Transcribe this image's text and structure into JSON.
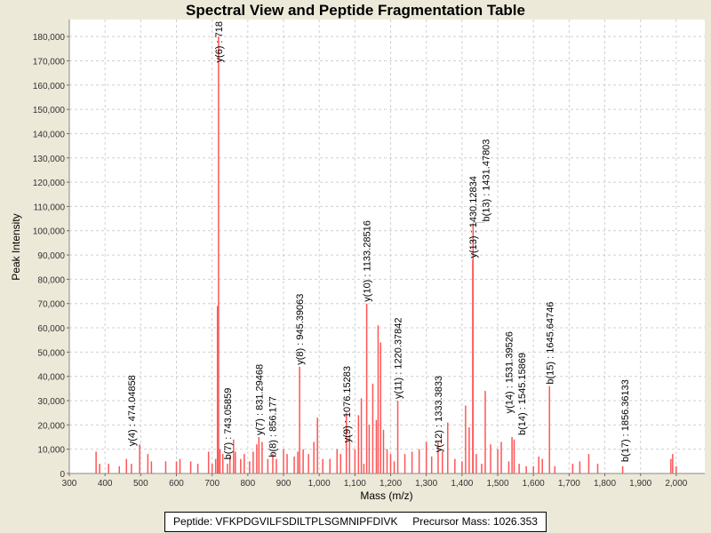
{
  "chart_data": {
    "type": "bar",
    "title": "Spectral View and Peptide Fragmentation Table",
    "xlabel": "Mass (m/z)",
    "ylabel": "Peak Intensity",
    "xlim": [
      300,
      2080
    ],
    "ylim": [
      0,
      187000
    ],
    "x_ticks": [
      300,
      400,
      500,
      600,
      700,
      800,
      900,
      1000,
      1100,
      1200,
      1300,
      1400,
      1500,
      1600,
      1700,
      1800,
      1900,
      2000
    ],
    "x_tick_labels": [
      "300",
      "400",
      "500",
      "600",
      "700",
      "800",
      "900",
      "1,000",
      "1,100",
      "1,200",
      "1,300",
      "1,400",
      "1,500",
      "1,600",
      "1,700",
      "1,800",
      "1,900",
      "2,000"
    ],
    "y_ticks": [
      0,
      10000,
      20000,
      30000,
      40000,
      50000,
      60000,
      70000,
      80000,
      90000,
      100000,
      110000,
      120000,
      130000,
      140000,
      150000,
      160000,
      170000,
      180000
    ],
    "y_tick_labels": [
      "0",
      "10,000",
      "20,000",
      "30,000",
      "40,000",
      "50,000",
      "60,000",
      "70,000",
      "80,000",
      "90,000",
      "100,000",
      "110,000",
      "120,000",
      "130,000",
      "140,000",
      "150,000",
      "160,000",
      "170,000",
      "180,000"
    ],
    "grid": true,
    "peak_color": "#ff5555",
    "peaks": [
      [
        375,
        9000
      ],
      [
        385,
        4000
      ],
      [
        410,
        4000
      ],
      [
        440,
        3000
      ],
      [
        460,
        6000
      ],
      [
        474,
        4000
      ],
      [
        497,
        12000
      ],
      [
        520,
        8000
      ],
      [
        530,
        5000
      ],
      [
        570,
        5000
      ],
      [
        600,
        5000
      ],
      [
        610,
        6000
      ],
      [
        640,
        5000
      ],
      [
        660,
        4000
      ],
      [
        690,
        9000
      ],
      [
        700,
        4000
      ],
      [
        710,
        6000
      ],
      [
        715,
        69000
      ],
      [
        718,
        180000
      ],
      [
        722,
        10000
      ],
      [
        730,
        8000
      ],
      [
        743,
        4000
      ],
      [
        750,
        7000
      ],
      [
        760,
        14000
      ],
      [
        765,
        9000
      ],
      [
        780,
        6000
      ],
      [
        790,
        8000
      ],
      [
        805,
        5000
      ],
      [
        815,
        9000
      ],
      [
        825,
        12000
      ],
      [
        831,
        15000
      ],
      [
        840,
        13000
      ],
      [
        856,
        6000
      ],
      [
        870,
        8000
      ],
      [
        880,
        6000
      ],
      [
        900,
        10000
      ],
      [
        910,
        8000
      ],
      [
        930,
        7000
      ],
      [
        940,
        9000
      ],
      [
        945,
        44000
      ],
      [
        955,
        10000
      ],
      [
        970,
        8000
      ],
      [
        985,
        13000
      ],
      [
        995,
        23000
      ],
      [
        1010,
        6000
      ],
      [
        1030,
        6000
      ],
      [
        1050,
        10000
      ],
      [
        1060,
        8000
      ],
      [
        1076,
        25000
      ],
      [
        1085,
        16000
      ],
      [
        1100,
        10000
      ],
      [
        1110,
        24000
      ],
      [
        1118,
        31000
      ],
      [
        1125,
        4000
      ],
      [
        1133,
        70000
      ],
      [
        1140,
        20000
      ],
      [
        1150,
        37000
      ],
      [
        1160,
        22000
      ],
      [
        1165,
        61000
      ],
      [
        1172,
        54000
      ],
      [
        1180,
        18000
      ],
      [
        1190,
        10000
      ],
      [
        1200,
        8000
      ],
      [
        1210,
        5000
      ],
      [
        1220,
        30000
      ],
      [
        1240,
        8000
      ],
      [
        1260,
        9000
      ],
      [
        1280,
        10000
      ],
      [
        1300,
        13000
      ],
      [
        1315,
        7000
      ],
      [
        1333,
        13000
      ],
      [
        1345,
        9000
      ],
      [
        1360,
        21000
      ],
      [
        1380,
        6000
      ],
      [
        1400,
        5000
      ],
      [
        1410,
        28000
      ],
      [
        1420,
        19000
      ],
      [
        1430,
        88000
      ],
      [
        1431,
        103000
      ],
      [
        1440,
        8000
      ],
      [
        1455,
        4000
      ],
      [
        1465,
        34000
      ],
      [
        1480,
        12000
      ],
      [
        1500,
        10000
      ],
      [
        1510,
        13000
      ],
      [
        1531,
        5000
      ],
      [
        1540,
        15000
      ],
      [
        1546,
        14000
      ],
      [
        1560,
        4000
      ],
      [
        1580,
        3000
      ],
      [
        1600,
        3000
      ],
      [
        1615,
        7000
      ],
      [
        1625,
        6000
      ],
      [
        1645,
        36000
      ],
      [
        1660,
        3000
      ],
      [
        1710,
        4000
      ],
      [
        1730,
        5000
      ],
      [
        1755,
        8000
      ],
      [
        1780,
        4000
      ],
      [
        1850,
        3000
      ],
      [
        1985,
        6000
      ],
      [
        1990,
        8000
      ],
      [
        2000,
        3000
      ]
    ],
    "annotations": [
      {
        "label": "y(4) : 474.04858",
        "mz": 474.04858,
        "intensity": 10500
      },
      {
        "label": "y(6) : 718",
        "mz": 718,
        "intensity": 181000
      },
      {
        "label": "b(7) : 743.05859",
        "mz": 743.05859,
        "intensity": 5000
      },
      {
        "label": "y(7) : 831.29468",
        "mz": 831.29468,
        "intensity": 15000
      },
      {
        "label": "b(8) : 856.177",
        "mz": 856.177,
        "intensity": 6000
      },
      {
        "label": "y(8) : 945.39063",
        "mz": 945.39063,
        "intensity": 44000
      },
      {
        "label": "y(9) : 1076.15283",
        "mz": 1076.15283,
        "intensity": 12000
      },
      {
        "label": "y(10) : 1133.28516",
        "mz": 1133.28516,
        "intensity": 70000
      },
      {
        "label": "y(11) : 1220.37842",
        "mz": 1220.37842,
        "intensity": 30000
      },
      {
        "label": "y(12) : 1333.3833",
        "mz": 1333.3833,
        "intensity": 8000
      },
      {
        "label": "y(13) : 1430.12834",
        "mz": 1430.12834,
        "intensity": 88000
      },
      {
        "label": "b(13) : 1431.47803",
        "mz": 1431.47803,
        "intensity": 103000
      },
      {
        "label": "y(14) : 1531.39526",
        "mz": 1531.39526,
        "intensity": 24000
      },
      {
        "label": "b(14) : 1545.15869",
        "mz": 1545.15869,
        "intensity": 15000
      },
      {
        "label": "b(15) : 1645.64746",
        "mz": 1645.64746,
        "intensity": 36000
      },
      {
        "label": "b(17) : 1856.36133",
        "mz": 1856.36133,
        "intensity": 4000
      }
    ]
  },
  "legend": {
    "peptide": "Peptide: VFKPDGVILFSDILTPLSGMNIPFDIVK",
    "precursor": "Precursor Mass: 1026.353"
  }
}
